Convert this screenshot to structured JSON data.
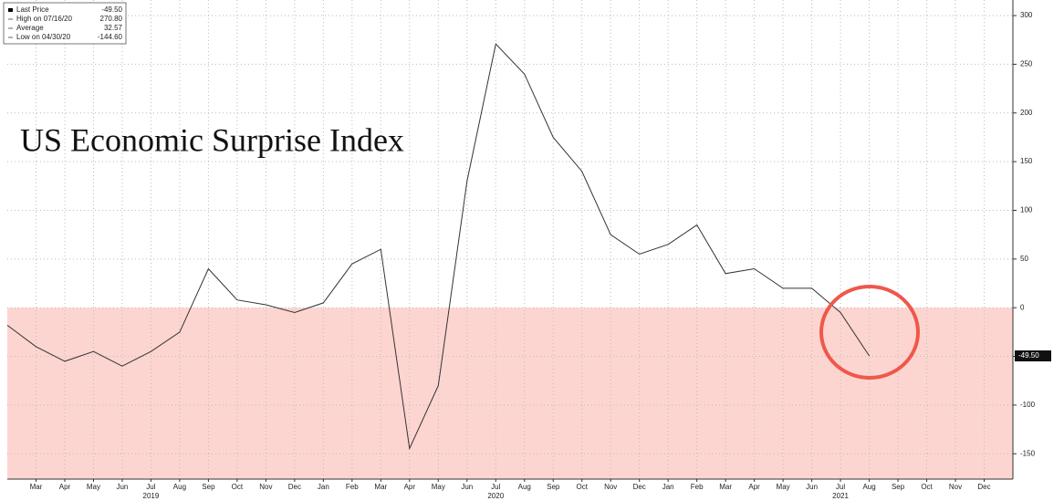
{
  "chart_data": {
    "type": "line",
    "title": "US Economic Surprise Index",
    "x": [
      "2019-02",
      "2019-03",
      "2019-04",
      "2019-05",
      "2019-06",
      "2019-07",
      "2019-08",
      "2019-09",
      "2019-10",
      "2019-11",
      "2019-12",
      "2020-01",
      "2020-02",
      "2020-03",
      "2020-04",
      "2020-05",
      "2020-06",
      "2020-07",
      "2020-08",
      "2020-09",
      "2020-10",
      "2020-11",
      "2020-12",
      "2021-01",
      "2021-02",
      "2021-03",
      "2021-04",
      "2021-05",
      "2021-06",
      "2021-07",
      "2021-08"
    ],
    "values": [
      -18,
      -40,
      -55,
      -45,
      -60,
      -45,
      -25,
      40,
      8,
      3,
      -5,
      5,
      45,
      60,
      -144.6,
      -80,
      130,
      270.8,
      240,
      175,
      140,
      75,
      55,
      65,
      85,
      35,
      40,
      20,
      20,
      -5,
      -49.5
    ],
    "color": "#333333",
    "xlim": [
      "2019-02",
      "2022-01"
    ],
    "xticks": [
      {
        "value": "2019-03",
        "label": "Mar"
      },
      {
        "value": "2019-04",
        "label": "Apr"
      },
      {
        "value": "2019-05",
        "label": "May"
      },
      {
        "value": "2019-06",
        "label": "Jun"
      },
      {
        "value": "2019-07",
        "label": "Jul"
      },
      {
        "value": "2019-08",
        "label": "Aug"
      },
      {
        "value": "2019-09",
        "label": "Sep"
      },
      {
        "value": "2019-10",
        "label": "Oct"
      },
      {
        "value": "2019-11",
        "label": "Nov"
      },
      {
        "value": "2019-12",
        "label": "Dec"
      },
      {
        "value": "2020-01",
        "label": "Jan"
      },
      {
        "value": "2020-02",
        "label": "Feb"
      },
      {
        "value": "2020-03",
        "label": "Mar"
      },
      {
        "value": "2020-04",
        "label": "Apr"
      },
      {
        "value": "2020-05",
        "label": "May"
      },
      {
        "value": "2020-06",
        "label": "Jun"
      },
      {
        "value": "2020-07",
        "label": "Jul"
      },
      {
        "value": "2020-08",
        "label": "Aug"
      },
      {
        "value": "2020-09",
        "label": "Sep"
      },
      {
        "value": "2020-10",
        "label": "Oct"
      },
      {
        "value": "2020-11",
        "label": "Nov"
      },
      {
        "value": "2020-12",
        "label": "Dec"
      },
      {
        "value": "2021-01",
        "label": "Jan"
      },
      {
        "value": "2021-02",
        "label": "Feb"
      },
      {
        "value": "2021-03",
        "label": "Mar"
      },
      {
        "value": "2021-04",
        "label": "Apr"
      },
      {
        "value": "2021-05",
        "label": "May"
      },
      {
        "value": "2021-06",
        "label": "Jun"
      },
      {
        "value": "2021-07",
        "label": "Jul"
      },
      {
        "value": "2021-08",
        "label": "Aug"
      },
      {
        "value": "2021-09",
        "label": "Sep"
      },
      {
        "value": "2021-10",
        "label": "Oct"
      },
      {
        "value": "2021-11",
        "label": "Nov"
      },
      {
        "value": "2021-12",
        "label": "Dec"
      }
    ],
    "year_ticks": [
      {
        "value": "2019-07",
        "label": "2019"
      },
      {
        "value": "2020-07",
        "label": "2020"
      },
      {
        "value": "2021-07",
        "label": "2021"
      }
    ],
    "ylim": [
      -176,
      316
    ],
    "yticks": [
      -150,
      -100,
      -50,
      0,
      50,
      100,
      150,
      200,
      250,
      300
    ],
    "grid": true,
    "shade_color": "#fdd5d0",
    "legend_stats": [
      {
        "label": "Last Price",
        "value": "-49.50"
      },
      {
        "label": "High on 07/16/20",
        "value": "270.80"
      },
      {
        "label": "Average",
        "value": "32.57"
      },
      {
        "label": "Low on 04/30/20",
        "value": "-144.60"
      }
    ]
  }
}
